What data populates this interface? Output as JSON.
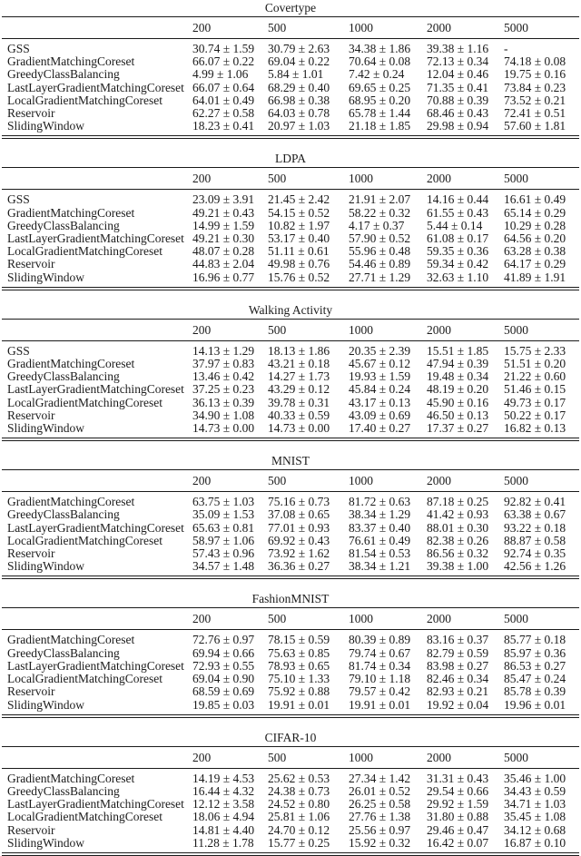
{
  "document": {
    "description": "Benchmark results: mean accuracy ± std per method and buffer size",
    "text_color": "#1b1b1b",
    "rule_color": "#1a1a1a",
    "background": "#ffffff"
  },
  "tables": [
    {
      "title": "Covertype",
      "columns": [
        "200",
        "500",
        "1000",
        "2000",
        "5000"
      ],
      "rows": [
        {
          "label": "GSS",
          "values": [
            "30.74 ± 1.59",
            "30.79 ± 2.63",
            "34.38 ± 1.86",
            "39.38 ± 1.16",
            "-"
          ]
        },
        {
          "label": "GradientMatchingCoreset",
          "values": [
            "66.07 ± 0.22",
            "69.04 ± 0.22",
            "70.64 ± 0.08",
            "72.13 ± 0.34",
            "74.18 ± 0.08"
          ]
        },
        {
          "label": "GreedyClassBalancing",
          "values": [
            "4.99 ± 1.06",
            "5.84 ± 1.01",
            "7.42 ± 0.24",
            "12.04 ± 0.46",
            "19.75 ± 0.16"
          ]
        },
        {
          "label": "LastLayerGradientMatchingCoreset",
          "values": [
            "66.07 ± 0.64",
            "68.29 ± 0.40",
            "69.65 ± 0.25",
            "71.35 ± 0.41",
            "73.84 ± 0.23"
          ]
        },
        {
          "label": "LocalGradientMatchingCoreset",
          "values": [
            "64.01 ± 0.49",
            "66.98 ± 0.38",
            "68.95 ± 0.20",
            "70.88 ± 0.39",
            "73.52 ± 0.21"
          ]
        },
        {
          "label": "Reservoir",
          "values": [
            "62.27 ± 0.58",
            "64.03 ± 0.78",
            "65.78 ± 1.44",
            "68.46 ± 0.43",
            "72.41 ± 0.51"
          ]
        },
        {
          "label": "SlidingWindow",
          "values": [
            "18.23 ± 0.41",
            "20.97 ± 1.03",
            "21.18 ± 1.85",
            "29.98 ± 0.94",
            "57.60 ± 1.81"
          ]
        }
      ]
    },
    {
      "title": "LDPA",
      "columns": [
        "200",
        "500",
        "1000",
        "2000",
        "5000"
      ],
      "rows": [
        {
          "label": "GSS",
          "values": [
            "23.09 ± 3.91",
            "21.45 ± 2.42",
            "21.91 ± 2.07",
            "14.16 ± 0.44",
            "16.61 ± 0.49"
          ]
        },
        {
          "label": "GradientMatchingCoreset",
          "values": [
            "49.21 ± 0.43",
            "54.15 ± 0.52",
            "58.22 ± 0.32",
            "61.55 ± 0.43",
            "65.14 ± 0.29"
          ]
        },
        {
          "label": "GreedyClassBalancing",
          "values": [
            "14.99 ± 1.59",
            "10.82 ± 1.97",
            "4.17 ± 0.37",
            "5.44 ± 0.14",
            "10.29 ± 0.28"
          ]
        },
        {
          "label": "LastLayerGradientMatchingCoreset",
          "values": [
            "49.21 ± 0.30",
            "53.17 ± 0.40",
            "57.90 ± 0.52",
            "61.08 ± 0.17",
            "64.56 ± 0.20"
          ]
        },
        {
          "label": "LocalGradientMatchingCoreset",
          "values": [
            "48.07 ± 0.28",
            "51.11 ± 0.61",
            "55.96 ± 0.48",
            "59.35 ± 0.36",
            "63.28 ± 0.38"
          ]
        },
        {
          "label": "Reservoir",
          "values": [
            "44.83 ± 2.04",
            "49.98 ± 0.76",
            "54.46 ± 0.89",
            "59.34 ± 0.42",
            "64.17 ± 0.29"
          ]
        },
        {
          "label": "SlidingWindow",
          "values": [
            "16.96 ± 0.77",
            "15.76 ± 0.52",
            "27.71 ± 1.29",
            "32.63 ± 1.10",
            "41.89 ± 1.91"
          ]
        }
      ]
    },
    {
      "title": "Walking Activity",
      "columns": [
        "200",
        "500",
        "1000",
        "2000",
        "5000"
      ],
      "rows": [
        {
          "label": "GSS",
          "values": [
            "14.13 ± 1.29",
            "18.13 ± 1.86",
            "20.35 ± 2.39",
            "15.51 ± 1.85",
            "15.75 ± 2.33"
          ]
        },
        {
          "label": "GradientMatchingCoreset",
          "values": [
            "37.97 ± 0.83",
            "43.21 ± 0.18",
            "45.67 ± 0.12",
            "47.94 ± 0.39",
            "51.51 ± 0.20"
          ]
        },
        {
          "label": "GreedyClassBalancing",
          "values": [
            "13.46 ± 0.42",
            "14.27 ± 1.73",
            "19.93 ± 1.59",
            "19.48 ± 0.34",
            "21.22 ± 0.60"
          ]
        },
        {
          "label": "LastLayerGradientMatchingCoreset",
          "values": [
            "37.25 ± 0.23",
            "43.29 ± 0.12",
            "45.84 ± 0.24",
            "48.19 ± 0.20",
            "51.46 ± 0.15"
          ]
        },
        {
          "label": "LocalGradientMatchingCoreset",
          "values": [
            "36.13 ± 0.39",
            "39.78 ± 0.31",
            "43.17 ± 0.13",
            "45.90 ± 0.16",
            "49.73 ± 0.17"
          ]
        },
        {
          "label": "Reservoir",
          "values": [
            "34.90 ± 1.08",
            "40.33 ± 0.59",
            "43.09 ± 0.69",
            "46.50 ± 0.13",
            "50.22 ± 0.17"
          ]
        },
        {
          "label": "SlidingWindow",
          "values": [
            "14.73 ± 0.00",
            "14.73 ± 0.00",
            "17.40 ± 0.27",
            "17.37 ± 0.27",
            "16.82 ± 0.13"
          ]
        }
      ]
    },
    {
      "title": "MNIST",
      "columns": [
        "200",
        "500",
        "1000",
        "2000",
        "5000"
      ],
      "rows": [
        {
          "label": "GradientMatchingCoreset",
          "values": [
            "63.75 ± 1.03",
            "75.16 ± 0.73",
            "81.72 ± 0.63",
            "87.18 ± 0.25",
            "92.82 ± 0.41"
          ]
        },
        {
          "label": "GreedyClassBalancing",
          "values": [
            "35.09 ± 1.53",
            "37.08 ± 0.65",
            "38.34 ± 1.29",
            "41.42 ± 0.93",
            "63.38 ± 0.67"
          ]
        },
        {
          "label": "LastLayerGradientMatchingCoreset",
          "values": [
            "65.63 ± 0.81",
            "77.01 ± 0.93",
            "83.37 ± 0.40",
            "88.01 ± 0.30",
            "93.22 ± 0.18"
          ]
        },
        {
          "label": "LocalGradientMatchingCoreset",
          "values": [
            "58.97 ± 1.06",
            "69.92 ± 0.43",
            "76.61 ± 0.49",
            "82.38 ± 0.26",
            "88.87 ± 0.58"
          ]
        },
        {
          "label": "Reservoir",
          "values": [
            "57.43 ± 0.96",
            "73.92 ± 1.62",
            "81.54 ± 0.53",
            "86.56 ± 0.32",
            "92.74 ± 0.35"
          ]
        },
        {
          "label": "SlidingWindow",
          "values": [
            "34.57 ± 1.48",
            "36.36 ± 0.27",
            "38.34 ± 1.21",
            "39.38 ± 1.00",
            "42.56 ± 1.26"
          ]
        }
      ]
    },
    {
      "title": "FashionMNIST",
      "columns": [
        "200",
        "500",
        "1000",
        "2000",
        "5000"
      ],
      "rows": [
        {
          "label": "GradientMatchingCoreset",
          "values": [
            "72.76 ± 0.97",
            "78.15 ± 0.59",
            "80.39 ± 0.89",
            "83.16 ± 0.37",
            "85.77 ± 0.18"
          ]
        },
        {
          "label": "GreedyClassBalancing",
          "values": [
            "69.94 ± 0.66",
            "75.63 ± 0.85",
            "79.74 ± 0.67",
            "82.79 ± 0.59",
            "85.97 ± 0.36"
          ]
        },
        {
          "label": "LastLayerGradientMatchingCoreset",
          "values": [
            "72.93 ± 0.55",
            "78.93 ± 0.65",
            "81.74 ± 0.34",
            "83.98 ± 0.27",
            "86.53 ± 0.27"
          ]
        },
        {
          "label": "LocalGradientMatchingCoreset",
          "values": [
            "69.04 ± 0.90",
            "75.10 ± 1.33",
            "79.10 ± 1.18",
            "82.46 ± 0.34",
            "85.47 ± 0.24"
          ]
        },
        {
          "label": "Reservoir",
          "values": [
            "68.59 ± 0.69",
            "75.92 ± 0.88",
            "79.57 ± 0.42",
            "82.93 ± 0.21",
            "85.78 ± 0.39"
          ]
        },
        {
          "label": "SlidingWindow",
          "values": [
            "19.85 ± 0.03",
            "19.91 ± 0.01",
            "19.91 ± 0.01",
            "19.92 ± 0.04",
            "19.96 ± 0.01"
          ]
        }
      ]
    },
    {
      "title": "CIFAR-10",
      "columns": [
        "200",
        "500",
        "1000",
        "2000",
        "5000"
      ],
      "rows": [
        {
          "label": "GradientMatchingCoreset",
          "values": [
            "14.19 ± 4.53",
            "25.62 ± 0.53",
            "27.34 ± 1.42",
            "31.31 ± 0.43",
            "35.46 ± 1.00"
          ]
        },
        {
          "label": "GreedyClassBalancing",
          "values": [
            "16.44 ± 4.32",
            "24.38 ± 0.73",
            "26.01 ± 0.52",
            "29.54 ± 0.66",
            "34.43 ± 0.59"
          ]
        },
        {
          "label": "LastLayerGradientMatchingCoreset",
          "values": [
            "12.12 ± 3.58",
            "24.52 ± 0.80",
            "26.25 ± 0.58",
            "29.92 ± 1.59",
            "34.71 ± 1.03"
          ]
        },
        {
          "label": "LocalGradientMatchingCoreset",
          "values": [
            "18.06 ± 4.94",
            "25.81 ± 1.06",
            "27.76 ± 1.38",
            "31.80 ± 0.88",
            "35.45 ± 1.08"
          ]
        },
        {
          "label": "Reservoir",
          "values": [
            "14.81 ± 4.40",
            "24.70 ± 0.12",
            "25.56 ± 0.97",
            "29.46 ± 0.47",
            "34.12 ± 0.68"
          ]
        },
        {
          "label": "SlidingWindow",
          "values": [
            "11.28 ± 1.78",
            "15.77 ± 0.25",
            "15.92 ± 0.32",
            "16.42 ± 0.07",
            "16.87 ± 0.10"
          ]
        }
      ]
    }
  ]
}
